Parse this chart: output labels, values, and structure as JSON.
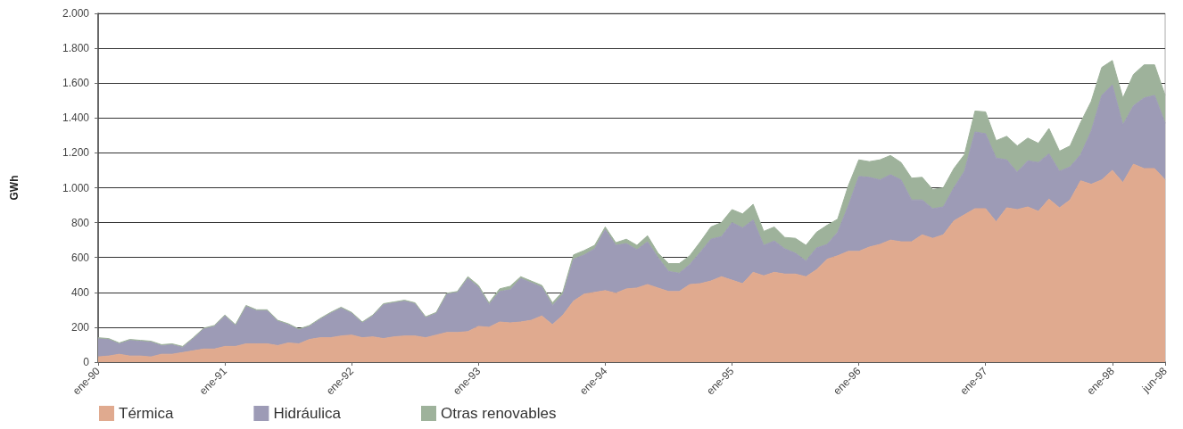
{
  "chart_data": {
    "type": "area",
    "ylabel": "GWh",
    "stacked": true,
    "grid": "y",
    "legend": "bottom left",
    "categories": [
      "ene-90",
      null,
      null,
      null,
      null,
      null,
      null,
      null,
      null,
      null,
      null,
      null,
      "ene-91",
      null,
      null,
      null,
      null,
      null,
      null,
      null,
      null,
      null,
      null,
      null,
      "ene-92",
      null,
      null,
      null,
      null,
      null,
      null,
      null,
      null,
      null,
      null,
      null,
      "ene-93",
      null,
      null,
      null,
      null,
      null,
      null,
      null,
      null,
      null,
      null,
      null,
      "ene-94",
      null,
      null,
      null,
      null,
      null,
      null,
      null,
      null,
      null,
      null,
      null,
      "ene-95",
      null,
      null,
      null,
      null,
      null,
      null,
      null,
      null,
      null,
      null,
      null,
      "ene-96",
      null,
      null,
      null,
      null,
      null,
      null,
      null,
      null,
      null,
      null,
      null,
      "ene-97",
      null,
      null,
      null,
      null,
      null,
      null,
      null,
      null,
      null,
      null,
      null,
      "ene-98",
      null,
      null,
      null,
      null,
      "jun-98"
    ],
    "ylim": [
      0,
      2000
    ],
    "yticks": [
      0,
      200,
      400,
      600,
      800,
      {
        "value": 1000,
        "label": "1.000"
      },
      {
        "value": 1200,
        "label": "1.200"
      },
      {
        "value": 1400,
        "label": "1.400"
      },
      {
        "value": 1600,
        "label": "1.600"
      },
      {
        "value": 1800,
        "label": "1.800"
      },
      {
        "value": 2000,
        "label": "2.000"
      }
    ],
    "series": [
      {
        "name": "Térmica",
        "color": "#e0aa8f",
        "values": [
          30,
          35,
          45,
          35,
          35,
          30,
          45,
          45,
          55,
          65,
          75,
          75,
          90,
          90,
          105,
          105,
          105,
          95,
          110,
          105,
          130,
          140,
          140,
          150,
          155,
          140,
          145,
          135,
          145,
          150,
          150,
          140,
          155,
          170,
          170,
          175,
          205,
          200,
          230,
          225,
          230,
          240,
          265,
          215,
          270,
          350,
          390,
          400,
          410,
          395,
          420,
          425,
          445,
          425,
          405,
          405,
          445,
          450,
          465,
          490,
          470,
          450,
          515,
          495,
          515,
          505,
          505,
          490,
          530,
          590,
          610,
          635,
          635,
          660,
          675,
          700,
          690,
          690,
          730,
          710,
          730,
          810,
          845,
          880,
          880,
          805,
          885,
          875,
          890,
          865,
          935,
          885,
          930,
          1040,
          1020,
          1045,
          1100,
          1030,
          1135,
          1110,
          1110,
          1045
        ]
      },
      {
        "name": "Hidráulica",
        "color": "#9d9bb6",
        "values": [
          105,
          95,
          60,
          90,
          85,
          85,
          50,
          55,
          30,
          70,
          115,
          130,
          175,
          120,
          215,
          190,
          190,
          140,
          105,
          80,
          75,
          105,
          140,
          160,
          125,
          85,
          120,
          195,
          195,
          200,
          185,
          115,
          125,
          220,
          230,
          305,
          225,
          130,
          175,
          190,
          250,
          215,
          165,
          110,
          120,
          240,
          225,
          250,
          350,
          275,
          260,
          220,
          245,
          175,
          115,
          105,
          115,
          180,
          240,
          230,
          330,
          320,
          300,
          175,
          180,
          145,
          120,
          90,
          125,
          85,
          135,
          260,
          430,
          400,
          370,
          375,
          355,
          240,
          200,
          170,
          160,
          190,
          250,
          440,
          430,
          365,
          275,
          215,
          265,
          280,
          260,
          210,
          190,
          150,
          305,
          485,
          490,
          330,
          335,
          405,
          420,
          325
        ]
      },
      {
        "name": "Otras renovables",
        "color": "#9eb29b",
        "values": [
          5,
          5,
          5,
          5,
          5,
          5,
          5,
          5,
          5,
          5,
          5,
          5,
          5,
          5,
          5,
          5,
          5,
          5,
          5,
          5,
          5,
          5,
          5,
          5,
          5,
          5,
          5,
          5,
          5,
          5,
          5,
          5,
          5,
          5,
          5,
          10,
          10,
          10,
          15,
          20,
          10,
          10,
          10,
          15,
          15,
          25,
          25,
          20,
          15,
          15,
          25,
          25,
          35,
          25,
          45,
          55,
          50,
          60,
          70,
          80,
          75,
          80,
          90,
          80,
          80,
          65,
          85,
          90,
          90,
          110,
          75,
          115,
          95,
          90,
          115,
          110,
          100,
          125,
          130,
          110,
          110,
          110,
          95,
          120,
          125,
          100,
          135,
          150,
          130,
          110,
          145,
          115,
          120,
          185,
          170,
          160,
          140,
          155,
          180,
          190,
          175,
          160
        ]
      }
    ]
  }
}
